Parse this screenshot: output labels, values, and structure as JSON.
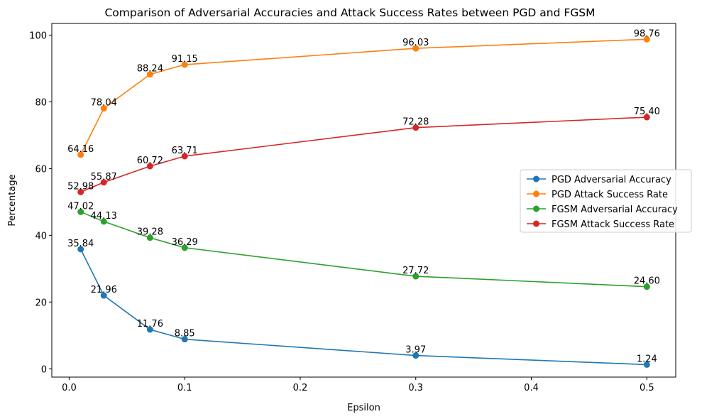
{
  "chart_data": {
    "type": "line",
    "title": "Comparison of Adversarial Accuracies and Attack Success Rates between PGD and FGSM",
    "xlabel": "Epsilon",
    "ylabel": "Percentage",
    "x": [
      0.01,
      0.03,
      0.07,
      0.1,
      0.3,
      0.5
    ],
    "xlim": [
      -0.015,
      0.525
    ],
    "ylim": [
      -2.5,
      103.5
    ],
    "xticks": [
      0.0,
      0.1,
      0.2,
      0.3,
      0.4,
      0.5
    ],
    "xtick_labels": [
      "0.0",
      "0.1",
      "0.2",
      "0.3",
      "0.4",
      "0.5"
    ],
    "yticks": [
      0,
      20,
      40,
      60,
      80,
      100
    ],
    "ytick_labels": [
      "0",
      "20",
      "40",
      "60",
      "80",
      "100"
    ],
    "grid": false,
    "legend_position": "center-right",
    "series": [
      {
        "name": "PGD Adversarial Accuracy",
        "color": "#1f77b4",
        "values": [
          35.84,
          21.96,
          11.76,
          8.85,
          3.97,
          1.24
        ],
        "labels": [
          "35.84",
          "21.96",
          "11.76",
          "8.85",
          "3.97",
          "1.24"
        ]
      },
      {
        "name": "PGD Attack Success Rate",
        "color": "#ff7f0e",
        "values": [
          64.16,
          78.04,
          88.24,
          91.15,
          96.03,
          98.76
        ],
        "labels": [
          "64.16",
          "78.04",
          "88.24",
          "91.15",
          "96.03",
          "98.76"
        ]
      },
      {
        "name": "FGSM Adversarial Accuracy",
        "color": "#2ca02c",
        "values": [
          47.02,
          44.13,
          39.28,
          36.29,
          27.72,
          24.6
        ],
        "labels": [
          "47.02",
          "44.13",
          "39.28",
          "36.29",
          "27.72",
          "24.60"
        ]
      },
      {
        "name": "FGSM Attack Success Rate",
        "color": "#d62728",
        "values": [
          52.98,
          55.87,
          60.72,
          63.71,
          72.28,
          75.4
        ],
        "labels": [
          "52.98",
          "55.87",
          "60.72",
          "63.71",
          "72.28",
          "75.40"
        ]
      }
    ]
  }
}
